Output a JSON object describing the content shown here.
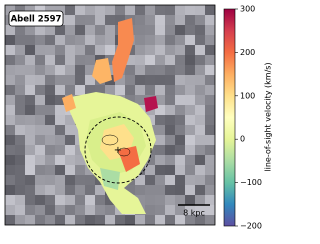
{
  "chart_data": {
    "type": "image",
    "title": "Abell 2597",
    "colorbar_label": "line-of-sight velocity (km/s)",
    "clim": [
      -200,
      300
    ],
    "colorbar_ticks": [
      {
        "value": -200,
        "label": "−200"
      },
      {
        "value": -100,
        "label": "−100"
      },
      0,
      100,
      200,
      300
    ],
    "colormap": [
      "#5e4fa2",
      "#3288bd",
      "#66c2a5",
      "#abdda4",
      "#e6f598",
      "#ffffbf",
      "#fee08b",
      "#fdae61",
      "#f46d43",
      "#d53e4f",
      "#9e0142"
    ],
    "scale_bar_label": "8 kpc"
  }
}
